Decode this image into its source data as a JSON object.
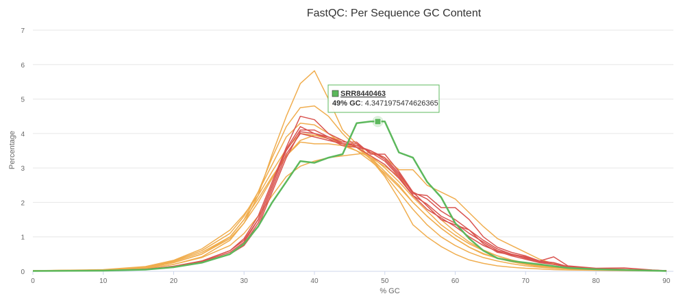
{
  "chart_data": {
    "type": "line",
    "title": "FastQC: Per Sequence GC Content",
    "xlabel": "% GC",
    "ylabel": "Percentage",
    "xlim": [
      0,
      91
    ],
    "ylim": [
      0,
      7
    ],
    "xticks": [
      0,
      10,
      20,
      30,
      40,
      50,
      60,
      70,
      80,
      90
    ],
    "yticks": [
      0,
      1,
      2,
      3,
      4,
      5,
      6,
      7
    ],
    "grid": "horizontal",
    "colors": {
      "pass": "#5cb85c",
      "warn": "#f0ad4e",
      "fail": "#d9534f"
    },
    "highlight_series": "SRR8440463",
    "tooltip": {
      "series": "SRR8440463",
      "x_label": "49% GC",
      "value": "4.3471975474626365",
      "x": 49,
      "y": 4.3471975474626365
    },
    "series": [
      {
        "status": "warn",
        "x": [
          0,
          10,
          16,
          20,
          24,
          28,
          30,
          32,
          34,
          36,
          38,
          40,
          42,
          44,
          46,
          48,
          50,
          52,
          54,
          56,
          58,
          60,
          62,
          64,
          66,
          68,
          70,
          72,
          74,
          76,
          80,
          84,
          88,
          90
        ],
        "values": [
          0.02,
          0.03,
          0.08,
          0.2,
          0.42,
          0.9,
          1.4,
          2.2,
          3.4,
          4.5,
          5.45,
          5.82,
          5.0,
          4.1,
          3.7,
          3.3,
          2.8,
          2.3,
          1.8,
          1.35,
          1.0,
          0.75,
          0.55,
          0.4,
          0.3,
          0.22,
          0.16,
          0.12,
          0.09,
          0.07,
          0.04,
          0.03,
          0.02,
          0.01
        ]
      },
      {
        "status": "warn",
        "x": [
          0,
          10,
          16,
          20,
          24,
          28,
          30,
          32,
          34,
          36,
          38,
          40,
          42,
          44,
          46,
          48,
          50,
          52,
          54,
          56,
          58,
          60,
          62,
          64,
          66,
          68,
          70,
          72,
          74,
          76,
          80,
          84,
          88,
          90
        ],
        "values": [
          0.02,
          0.03,
          0.1,
          0.25,
          0.5,
          1.0,
          1.5,
          2.3,
          3.3,
          4.2,
          4.75,
          4.8,
          4.5,
          4.0,
          3.6,
          3.3,
          2.9,
          2.5,
          2.0,
          1.6,
          1.25,
          0.95,
          0.7,
          0.5,
          0.38,
          0.28,
          0.2,
          0.15,
          0.1,
          0.08,
          0.05,
          0.03,
          0.02,
          0.01
        ]
      },
      {
        "status": "warn",
        "x": [
          0,
          10,
          16,
          20,
          24,
          28,
          30,
          32,
          34,
          36,
          38,
          40,
          42,
          44,
          46,
          48,
          50,
          52,
          54,
          56,
          58,
          60,
          62,
          64,
          66,
          68,
          70,
          72,
          74,
          76,
          80,
          84,
          88,
          90
        ],
        "values": [
          0.02,
          0.04,
          0.12,
          0.3,
          0.6,
          1.1,
          1.6,
          2.3,
          3.1,
          3.9,
          4.3,
          4.25,
          4.0,
          3.7,
          3.5,
          3.3,
          3.05,
          2.75,
          2.3,
          1.9,
          1.5,
          1.15,
          0.85,
          0.62,
          0.45,
          0.32,
          0.22,
          0.15,
          0.1,
          0.08,
          0.05,
          0.03,
          0.02,
          0.01
        ]
      },
      {
        "status": "warn",
        "x": [
          0,
          10,
          16,
          20,
          24,
          28,
          30,
          32,
          34,
          36,
          38,
          40,
          42,
          44,
          46,
          48,
          50,
          52,
          54,
          56,
          58,
          60,
          62,
          64,
          66,
          68,
          70,
          72,
          74,
          76,
          80,
          84,
          88,
          90
        ],
        "values": [
          0.02,
          0.05,
          0.14,
          0.32,
          0.65,
          1.2,
          1.65,
          2.2,
          2.9,
          3.55,
          4.0,
          3.95,
          3.85,
          3.7,
          3.6,
          3.35,
          3.0,
          2.6,
          2.15,
          1.75,
          1.35,
          1.05,
          0.8,
          0.6,
          0.45,
          0.33,
          0.24,
          0.17,
          0.12,
          0.09,
          0.06,
          0.04,
          0.02,
          0.01
        ]
      },
      {
        "status": "warn",
        "x": [
          0,
          10,
          16,
          20,
          24,
          28,
          30,
          32,
          34,
          36,
          38,
          40,
          42,
          44,
          46,
          48,
          50,
          52,
          54,
          56,
          58,
          60,
          62,
          64,
          66,
          68,
          70,
          72,
          74,
          76,
          80,
          84,
          88,
          90
        ],
        "values": [
          0.02,
          0.04,
          0.11,
          0.28,
          0.55,
          1.0,
          1.5,
          2.1,
          2.75,
          3.35,
          3.75,
          3.7,
          3.7,
          3.65,
          3.5,
          3.2,
          2.85,
          2.45,
          2.0,
          1.6,
          1.25,
          0.95,
          0.7,
          0.52,
          0.38,
          0.28,
          0.2,
          0.14,
          0.1,
          0.07,
          0.05,
          0.03,
          0.02,
          0.01
        ]
      },
      {
        "status": "warn",
        "x": [
          0,
          10,
          16,
          20,
          24,
          28,
          30,
          32,
          34,
          36,
          38,
          40,
          42,
          44,
          46,
          48,
          50,
          52,
          54,
          56,
          58,
          60,
          62,
          64,
          66,
          68,
          70,
          72,
          74,
          76,
          80,
          84,
          88,
          90
        ],
        "values": [
          0.02,
          0.03,
          0.08,
          0.2,
          0.4,
          0.75,
          1.1,
          1.6,
          2.2,
          2.75,
          3.05,
          3.2,
          3.3,
          3.35,
          3.4,
          3.45,
          3.3,
          2.95,
          2.95,
          2.5,
          2.3,
          2.1,
          1.7,
          1.3,
          0.95,
          0.75,
          0.55,
          0.35,
          0.22,
          0.15,
          0.08,
          0.05,
          0.03,
          0.02
        ]
      },
      {
        "status": "warn",
        "x": [
          0,
          10,
          16,
          20,
          24,
          28,
          30,
          32,
          34,
          36,
          38,
          40,
          42,
          44,
          46,
          48,
          50,
          52,
          54,
          56,
          58,
          60,
          62,
          64,
          66,
          68,
          70,
          72,
          74,
          76,
          80,
          84,
          88,
          90
        ],
        "values": [
          0.02,
          0.04,
          0.1,
          0.25,
          0.5,
          0.95,
          1.4,
          2.0,
          2.7,
          3.35,
          3.8,
          3.95,
          3.9,
          3.8,
          3.6,
          3.25,
          2.75,
          2.1,
          1.35,
          1.0,
          0.72,
          0.5,
          0.33,
          0.23,
          0.16,
          0.12,
          0.09,
          0.07,
          0.05,
          0.04,
          0.03,
          0.02,
          0.01,
          0.01
        ]
      },
      {
        "status": "fail",
        "x": [
          0,
          10,
          16,
          20,
          24,
          28,
          30,
          32,
          34,
          36,
          38,
          40,
          42,
          44,
          46,
          48,
          50,
          52,
          54,
          56,
          58,
          60,
          62,
          64,
          66,
          68,
          70,
          72,
          74,
          76,
          80,
          84,
          88,
          90
        ],
        "values": [
          0.01,
          0.02,
          0.06,
          0.15,
          0.3,
          0.6,
          0.95,
          1.6,
          2.6,
          3.6,
          4.5,
          4.4,
          4.0,
          3.8,
          3.6,
          3.5,
          3.25,
          2.8,
          2.3,
          2.1,
          1.75,
          1.5,
          1.2,
          0.9,
          0.65,
          0.5,
          0.38,
          0.28,
          0.2,
          0.14,
          0.08,
          0.05,
          0.03,
          0.02
        ]
      },
      {
        "status": "fail",
        "x": [
          0,
          10,
          16,
          20,
          24,
          28,
          30,
          32,
          34,
          36,
          38,
          40,
          42,
          44,
          46,
          48,
          50,
          52,
          54,
          56,
          58,
          60,
          62,
          64,
          66,
          68,
          70,
          72,
          74,
          76,
          80,
          84,
          88,
          90
        ],
        "values": [
          0.01,
          0.02,
          0.05,
          0.13,
          0.28,
          0.55,
          0.85,
          1.5,
          2.5,
          3.5,
          4.1,
          4.1,
          3.9,
          3.7,
          3.65,
          3.5,
          3.3,
          2.85,
          2.25,
          2.2,
          1.85,
          1.85,
          1.5,
          1.0,
          0.7,
          0.55,
          0.45,
          0.3,
          0.42,
          0.16,
          0.09,
          0.1,
          0.04,
          0.02
        ]
      },
      {
        "status": "fail",
        "x": [
          0,
          10,
          16,
          20,
          24,
          28,
          30,
          32,
          34,
          36,
          38,
          40,
          42,
          44,
          46,
          48,
          50,
          52,
          54,
          56,
          58,
          60,
          62,
          64,
          66,
          68,
          70,
          72,
          74,
          76,
          80,
          84,
          88,
          90
        ],
        "values": [
          0.01,
          0.02,
          0.05,
          0.12,
          0.25,
          0.5,
          0.8,
          1.4,
          2.4,
          3.4,
          4.0,
          3.9,
          3.8,
          3.7,
          3.7,
          3.45,
          3.2,
          2.75,
          2.2,
          1.8,
          1.55,
          1.3,
          1.0,
          0.75,
          0.58,
          0.45,
          0.35,
          0.25,
          0.2,
          0.13,
          0.07,
          0.05,
          0.03,
          0.02
        ]
      },
      {
        "status": "fail",
        "x": [
          0,
          10,
          16,
          20,
          24,
          28,
          30,
          32,
          34,
          36,
          38,
          40,
          42,
          44,
          46,
          48,
          50,
          52,
          54,
          56,
          58,
          60,
          62,
          64,
          66,
          68,
          70,
          72,
          74,
          76,
          80,
          84,
          88,
          90
        ],
        "values": [
          0.01,
          0.02,
          0.06,
          0.14,
          0.3,
          0.6,
          0.9,
          1.5,
          2.5,
          3.55,
          4.2,
          4.0,
          3.85,
          3.65,
          3.6,
          3.35,
          3.1,
          2.7,
          2.2,
          1.95,
          1.6,
          1.4,
          1.1,
          0.85,
          0.6,
          0.5,
          0.42,
          0.3,
          0.25,
          0.14,
          0.08,
          0.06,
          0.03,
          0.02
        ]
      },
      {
        "status": "fail",
        "x": [
          0,
          10,
          16,
          20,
          24,
          28,
          30,
          32,
          34,
          36,
          38,
          40,
          42,
          44,
          46,
          48,
          50,
          52,
          54,
          56,
          58,
          60,
          62,
          64,
          66,
          68,
          70,
          72,
          74,
          76,
          80,
          84,
          88,
          90
        ],
        "values": [
          0.01,
          0.02,
          0.05,
          0.12,
          0.25,
          0.5,
          0.75,
          1.3,
          2.3,
          3.3,
          4.05,
          4.0,
          3.9,
          3.75,
          3.75,
          3.4,
          3.4,
          2.9,
          2.3,
          1.9,
          1.5,
          1.35,
          1.2,
          0.8,
          0.55,
          0.48,
          0.4,
          0.28,
          0.25,
          0.13,
          0.08,
          0.05,
          0.03,
          0.02
        ]
      },
      {
        "status": "pass",
        "name": "SRR8440463",
        "x": [
          0,
          10,
          16,
          20,
          24,
          28,
          30,
          32,
          34,
          36,
          38,
          40,
          42,
          44,
          46,
          48,
          49,
          50,
          52,
          54,
          56,
          58,
          60,
          62,
          64,
          66,
          68,
          70,
          72,
          74,
          76,
          80,
          84,
          88,
          90
        ],
        "values": [
          0.01,
          0.02,
          0.05,
          0.12,
          0.25,
          0.5,
          0.8,
          1.3,
          2.0,
          2.6,
          3.2,
          3.15,
          3.3,
          3.4,
          4.3,
          4.35,
          4.35,
          4.35,
          3.45,
          3.3,
          2.6,
          2.15,
          1.4,
          0.95,
          0.6,
          0.38,
          0.3,
          0.25,
          0.2,
          0.15,
          0.1,
          0.06,
          0.04,
          0.02,
          0.01
        ]
      }
    ]
  }
}
